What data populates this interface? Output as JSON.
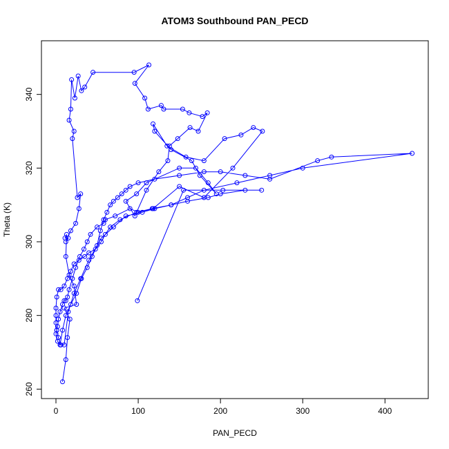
{
  "chart_data": {
    "type": "line",
    "title": "ATOM3 Southbound PAN_PECD",
    "xlabel": "PAN_PECD",
    "ylabel": "Theta (K)",
    "xlim": [
      0,
      435
    ],
    "ylim": [
      261,
      351
    ],
    "xticks": [
      0,
      100,
      200,
      300,
      400
    ],
    "yticks": [
      260,
      280,
      300,
      320,
      340
    ],
    "grid": false,
    "series_color": "#0000ff",
    "markers": "open-circle",
    "series": [
      {
        "x": [
          8,
          12,
          14,
          17,
          10,
          25,
          22,
          16,
          12,
          13,
          11,
          15,
          12,
          18,
          24,
          28,
          30,
          26,
          20,
          22,
          16,
          18,
          19,
          23,
          27,
          31,
          35,
          45,
          95,
          113,
          96,
          108,
          112,
          128,
          131,
          154,
          162,
          178,
          184,
          173,
          163,
          148,
          138,
          136,
          125,
          110,
          96,
          85,
          98,
          110,
          150,
          170,
          185,
          195,
          175,
          165,
          140,
          120,
          118,
          135,
          158,
          180,
          205,
          225,
          240,
          251,
          215,
          180,
          150,
          118,
          100,
          90,
          72,
          60,
          58,
          50,
          42,
          38,
          34,
          29,
          24,
          20,
          16,
          14,
          12,
          10,
          8,
          5,
          3,
          2,
          1,
          0,
          2,
          5,
          8,
          12,
          18,
          25,
          31,
          38,
          44,
          50,
          54,
          58,
          62,
          66,
          70,
          75,
          80,
          85,
          90,
          100,
          120,
          150,
          180,
          200,
          230,
          260,
          318,
          335,
          433,
          300,
          260,
          220,
          180,
          160,
          140,
          117,
          98,
          78,
          66,
          60,
          55,
          48,
          40,
          35,
          28,
          22,
          18,
          14,
          10,
          6,
          3,
          1,
          0,
          0,
          0,
          1,
          3,
          6,
          10,
          15,
          22,
          30,
          40,
          55,
          70,
          85,
          105,
          120,
          140,
          160,
          185,
          200,
          230,
          250,
          203,
          155,
          99
        ],
        "y": [
          262,
          268,
          274,
          279,
          282,
          283,
          288,
          291,
          296,
          302,
          301,
          301,
          300,
          303,
          305,
          309,
          313,
          312,
          328,
          330,
          333,
          336,
          344,
          339,
          345,
          341,
          342,
          346,
          346,
          348,
          343,
          339,
          336,
          337,
          336,
          336,
          335,
          334,
          335,
          330,
          331,
          328,
          326,
          322,
          319,
          314,
          307,
          311,
          313,
          316,
          320,
          320,
          316,
          313,
          318,
          322,
          325,
          330,
          332,
          326,
          323,
          322,
          328,
          329,
          331,
          330,
          320,
          312,
          315,
          309,
          308,
          309,
          307,
          306,
          305,
          304,
          302,
          300,
          298,
          296,
          293,
          290,
          287,
          285,
          284,
          284,
          283,
          281,
          279,
          277,
          276,
          275,
          273,
          272,
          276,
          280,
          283,
          286,
          290,
          293,
          296,
          299,
          303,
          306,
          308,
          310,
          311,
          312,
          313,
          314,
          315,
          316,
          317,
          318,
          319,
          319,
          318,
          317,
          322,
          323,
          324,
          320,
          318,
          316,
          314,
          312,
          310,
          309,
          308,
          306,
          304,
          302,
          300,
          298,
          297,
          296,
          295,
          294,
          292,
          290,
          288,
          287,
          287,
          285,
          282,
          280,
          278,
          276,
          274,
          272,
          272,
          281,
          286,
          290,
          295,
          301,
          304,
          307,
          308,
          309,
          310,
          311,
          312,
          313,
          314,
          314,
          314,
          314,
          284
        ]
      }
    ]
  }
}
